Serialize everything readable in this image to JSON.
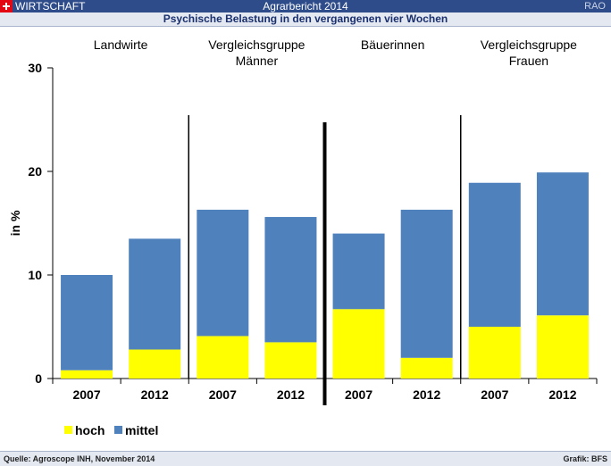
{
  "header": {
    "section": "WIRTSCHAFT",
    "title": "Agrarbericht 2014",
    "right": "RAO",
    "subtitle": "Psychische Belastung in den vergangenen vier Wochen"
  },
  "footer": {
    "source": "Quelle: Agroscope INH, November 2014",
    "credit": "Grafik: BFS"
  },
  "colors": {
    "hoch": "#ffff00",
    "mittel": "#4f81bd",
    "header": "#2e4c8a",
    "flag": "#e30613"
  },
  "icons": {
    "flag": "swiss-flag-icon"
  },
  "chart_data": {
    "type": "bar",
    "stacked": true,
    "ylabel": "in %",
    "ylim": [
      0,
      30
    ],
    "yticks": [
      0,
      10,
      20,
      30
    ],
    "groups": [
      "Landwirte",
      "Vergleichsgruppe Männer",
      "Bäuerinnen",
      "Vergleichsgruppe Frauen"
    ],
    "categories": [
      "2007",
      "2012",
      "2007",
      "2012",
      "2007",
      "2012",
      "2007",
      "2012"
    ],
    "series": [
      {
        "name": "hoch",
        "color": "#ffff00",
        "values": [
          0.8,
          2.8,
          4.1,
          3.5,
          6.7,
          2.0,
          5.0,
          6.1
        ]
      },
      {
        "name": "mittel",
        "color": "#4f81bd",
        "values": [
          9.2,
          10.7,
          12.2,
          12.1,
          7.3,
          14.3,
          13.9,
          13.8
        ]
      }
    ],
    "legend": "bottom-left",
    "grid": false
  }
}
